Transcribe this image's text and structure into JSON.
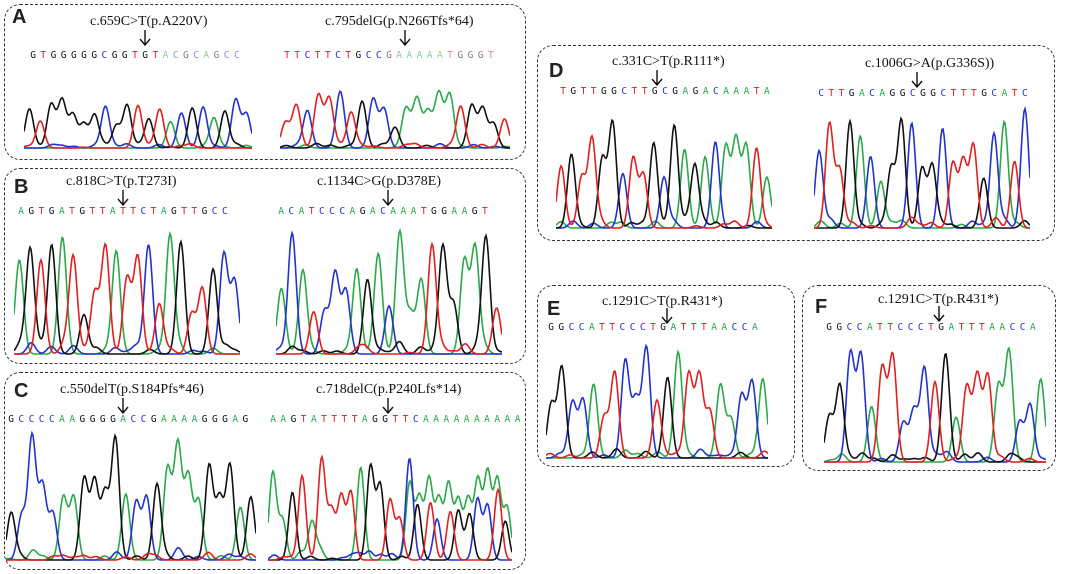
{
  "colors": {
    "A": "#2ba84a",
    "C": "#2233cc",
    "G": "#111111",
    "T": "#e02020"
  },
  "panels": [
    {
      "id": "A",
      "label": "A",
      "traces": [
        {
          "mutation": "c.659C>T(p.A220V)",
          "sequence": "GTGGGGGCGGTGTACGCAGCC",
          "faded_from": 13
        },
        {
          "mutation": "c.795delG(p.N266Tfs*64)",
          "sequence": "TTCTTCTGCCGAAAAATGGGT",
          "faded_from": 10
        }
      ]
    },
    {
      "id": "B",
      "label": "B",
      "traces": [
        {
          "mutation": "c.818C>T(p.T273I)",
          "sequence": "AGTGATGTTATTCTAGTTGCC"
        },
        {
          "mutation": "c.1134C>G(p.D378E)",
          "sequence": "ACATCCCAGACAAATGGAAGT"
        }
      ]
    },
    {
      "id": "C",
      "label": "C",
      "traces": [
        {
          "mutation": "c.550delT(p.S184Pfs*46)",
          "sequence": "GCCCCAAGGGGACCGAAAAGGGAG"
        },
        {
          "mutation": "c.718delC(p.P240Lfs*14)",
          "sequence": "AAGTATTTTAGGTTCAAAAAAAAAA"
        }
      ]
    },
    {
      "id": "D",
      "label": "D",
      "traces": [
        {
          "mutation": "c.331C>T(p.R111*)",
          "sequence": "TGTTGGCTTGCGAGACAAATA"
        },
        {
          "mutation": "c.1006G>A(p.G336S))",
          "sequence": "CTTGACAGGCGGCTTTGCATC"
        }
      ]
    },
    {
      "id": "E",
      "label": "E",
      "traces": [
        {
          "mutation": "c.1291C>T(p.R431*)",
          "sequence": "GGCCATTCCCTGATTTAACCA"
        }
      ]
    },
    {
      "id": "F",
      "label": "F",
      "traces": [
        {
          "mutation": "c.1291C>T(p.R431*)",
          "sequence": "GGCCATTCCCTGATTTAACCA"
        }
      ]
    }
  ]
}
